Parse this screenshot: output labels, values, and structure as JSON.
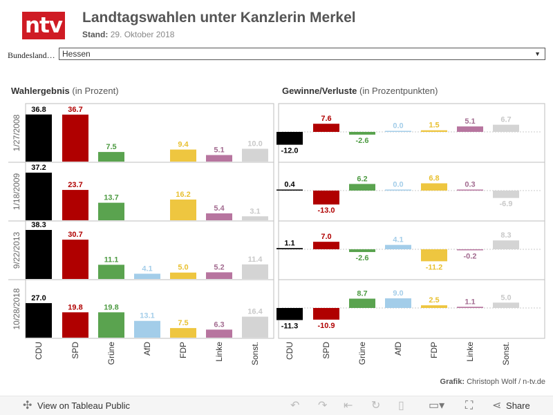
{
  "header": {
    "logo_text": "ntv",
    "title": "Landtagswahlen unter Kanzlerin Merkel",
    "stand_label": "Stand:",
    "stand_value": "29. Oktober 2018"
  },
  "filter": {
    "label": "Bundesland…",
    "value": "Hessen"
  },
  "sections": {
    "left_title": "Wahlergebnis",
    "left_sub": "(in Prozent)",
    "right_title": "Gewinne/Verluste",
    "right_sub": "(in Prozentpunkten)"
  },
  "credit": {
    "label": "Grafik:",
    "value": "Christoph Wolf / n-tv.de"
  },
  "footer": {
    "view_label": "View on Tableau Public",
    "share_label": "Share"
  },
  "colors": {
    "CDU": "#000000",
    "SPD": "#b00000",
    "Grüne": "#5aa34f",
    "AfD": "#a3cde9",
    "FDP": "#eec640",
    "Linke": "#b7759f",
    "Sonst.": "#d4d4d4",
    "label_CDU": "#000000",
    "label_SPD": "#b00000",
    "label_Grüne": "#4c9a41",
    "label_AfD": "#a3cde9",
    "label_FDP": "#e8c030",
    "label_Linke": "#a26a8f",
    "label_Sonst.": "#c8c8c8"
  },
  "chart_data": [
    {
      "type": "bar",
      "title": "Wahlergebnis (in Prozent)",
      "categories": [
        "CDU",
        "SPD",
        "Grüne",
        "AfD",
        "FDP",
        "Linke",
        "Sonst."
      ],
      "rows": [
        "1/27/2008",
        "1/18/2009",
        "9/22/2013",
        "10/28/2018"
      ],
      "values": [
        [
          36.8,
          36.7,
          7.5,
          null,
          9.4,
          5.1,
          10.0
        ],
        [
          37.2,
          23.7,
          13.7,
          null,
          16.2,
          5.4,
          3.1
        ],
        [
          38.3,
          30.7,
          11.1,
          4.1,
          5.0,
          5.2,
          11.4
        ],
        [
          27.0,
          19.8,
          19.8,
          13.1,
          7.5,
          6.3,
          16.4
        ]
      ],
      "labels": [
        [
          "36.8",
          "36.7",
          "7.5",
          "",
          "9.4",
          "5.1",
          "10.0"
        ],
        [
          "37.2",
          "23.7",
          "13.7",
          "",
          "16.2",
          "5.4",
          "3.1"
        ],
        [
          "38.3",
          "30.7",
          "11.1",
          "4.1",
          "5.0",
          "5.2",
          "11.4"
        ],
        [
          "27.0",
          "19.8",
          "19.8",
          "13.1",
          "7.5",
          "6.3",
          "16.4"
        ]
      ],
      "ylim": [
        0,
        40
      ]
    },
    {
      "type": "bar",
      "title": "Gewinne/Verluste (in Prozentpunkten)",
      "categories": [
        "CDU",
        "SPD",
        "Grüne",
        "AfD",
        "FDP",
        "Linke",
        "Sonst."
      ],
      "rows": [
        "1/27/2008",
        "1/18/2009",
        "9/22/2013",
        "10/28/2018"
      ],
      "values": [
        [
          -12.0,
          7.6,
          -2.6,
          0.0,
          1.5,
          5.1,
          6.7
        ],
        [
          0.4,
          -13.0,
          6.2,
          0.0,
          6.8,
          0.3,
          -6.9
        ],
        [
          1.1,
          7.0,
          -2.6,
          4.1,
          -11.2,
          -0.2,
          8.3
        ],
        [
          -11.3,
          -10.9,
          8.7,
          9.0,
          2.5,
          1.1,
          5.0
        ]
      ],
      "labels": [
        [
          "-12.0",
          "7.6",
          "-2.6",
          "0.0",
          "1.5",
          "5.1",
          "6.7"
        ],
        [
          "0.4",
          "-13.0",
          "6.2",
          "0.0",
          "6.8",
          "0.3",
          "-6.9"
        ],
        [
          "1.1",
          "7.0",
          "-2.6",
          "4.1",
          "-11.2",
          "-0.2",
          "8.3"
        ],
        [
          "-11.3",
          "-10.9",
          "8.7",
          "9.0",
          "2.5",
          "1.1",
          "5.0"
        ]
      ],
      "ylim": [
        -14,
        12
      ]
    }
  ]
}
